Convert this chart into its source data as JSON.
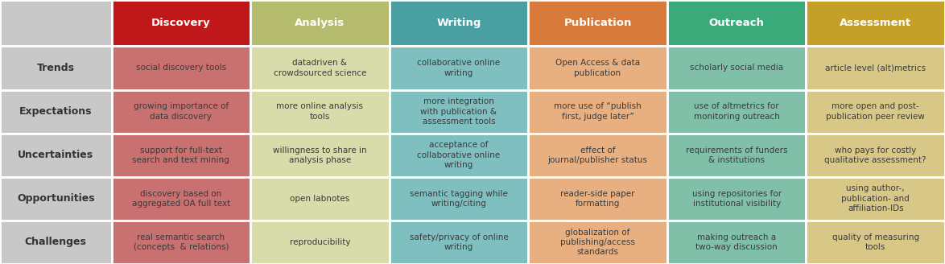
{
  "headers": [
    "",
    "Discovery",
    "Analysis",
    "Writing",
    "Publication",
    "Outreach",
    "Assessment"
  ],
  "header_colors": [
    "#c8c8c8",
    "#c0171b",
    "#b5bc6e",
    "#4a9fa3",
    "#d87a3a",
    "#3aaa7a",
    "#c4a028"
  ],
  "header_text_color": "#ffffff",
  "row_labels": [
    "Trends",
    "Expectations",
    "Uncertainties",
    "Opportunities",
    "Challenges"
  ],
  "row_label_bg": "#c8c8c8",
  "cell_colors": [
    "#c97070",
    "#d8dcaa",
    "#7fbfc0",
    "#e8b080",
    "#80c0a8",
    "#d8c888"
  ],
  "cells": [
    [
      "social discovery tools",
      "datadriven &\ncrowdsourced science",
      "collaborative online\nwriting",
      "Open Access & data\npublication",
      "scholarly social media",
      "article level (alt)metrics"
    ],
    [
      "growing importance of\ndata discovery",
      "more online analysis\ntools",
      "more integration\nwith publication &\nassessment tools",
      "more use of “publish\nfirst, judge later”",
      "use of altmetrics for\nmonitoring outreach",
      "more open and post-\npublication peer review"
    ],
    [
      "support for full-text\nsearch and text mining",
      "willingness to share in\nanalysis phase",
      "acceptance of\ncollaborative online\nwriting",
      "effect of\njournal/publisher status",
      "requirements of funders\n& institutions",
      "who pays for costly\nqualitative assessment?"
    ],
    [
      "discovery based on\naggregated OA full text",
      "open labnotes",
      "semantic tagging while\nwriting/citing",
      "reader-side paper\nformatting",
      "using repositories for\ninstitutional visibility",
      "using author-,\npublication- and\naffiliation-IDs"
    ],
    [
      "real semantic search\n(concepts  & relations)",
      "reproducibility",
      "safety/privacy of online\nwriting",
      "globalization of\npublishing/access\nstandards",
      "making outreach a\ntwo-way discussion",
      "quality of measuring\ntools"
    ]
  ],
  "figsize": [
    11.74,
    3.28
  ],
  "dpi": 100,
  "font_size_header": 9.5,
  "font_size_cell": 7.5,
  "font_size_row_label": 9.0,
  "border_color": "#ffffff",
  "border_width": 2.0,
  "text_color_cells": "#3a3a3a",
  "text_color_row_labels": "#333333"
}
